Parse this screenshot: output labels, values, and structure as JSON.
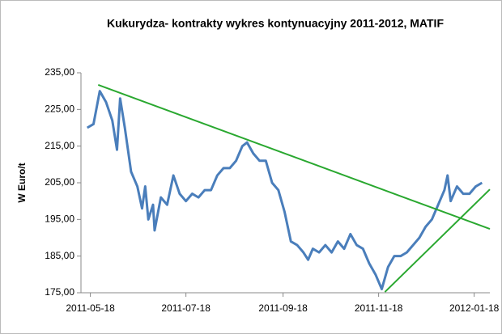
{
  "chart_data": {
    "type": "line",
    "title": "Kukurydza- kontrakty wykres kontynuacyjny 2011-2012,  MATIF",
    "y_label": "W Euro/t",
    "x": [
      "2011-05-16",
      "2011-05-20",
      "2011-05-24",
      "2011-05-28",
      "2011-06-01",
      "2011-06-04",
      "2011-06-06",
      "2011-06-09",
      "2011-06-13",
      "2011-06-17",
      "2011-06-20",
      "2011-06-22",
      "2011-06-24",
      "2011-06-27",
      "2011-06-28",
      "2011-07-02",
      "2011-07-06",
      "2011-07-10",
      "2011-07-14",
      "2011-07-18",
      "2011-07-22",
      "2011-07-26",
      "2011-07-30",
      "2011-08-03",
      "2011-08-07",
      "2011-08-11",
      "2011-08-15",
      "2011-08-19",
      "2011-08-23",
      "2011-08-26",
      "2011-08-30",
      "2011-09-03",
      "2011-09-07",
      "2011-09-11",
      "2011-09-15",
      "2011-09-19",
      "2011-09-23",
      "2011-09-27",
      "2011-10-01",
      "2011-10-04",
      "2011-10-07",
      "2011-10-11",
      "2011-10-15",
      "2011-10-19",
      "2011-10-23",
      "2011-10-27",
      "2011-10-31",
      "2011-11-04",
      "2011-11-08",
      "2011-11-12",
      "2011-11-16",
      "2011-11-20",
      "2011-11-24",
      "2011-11-28",
      "2011-12-02",
      "2011-12-06",
      "2011-12-10",
      "2011-12-14",
      "2011-12-18",
      "2011-12-22",
      "2011-12-26",
      "2011-12-30",
      "2012-01-01",
      "2012-01-03",
      "2012-01-07",
      "2012-01-11",
      "2012-01-15",
      "2012-01-19",
      "2012-01-23"
    ],
    "series": [
      {
        "color": "#4a7ebb",
        "values": [
          220,
          221,
          230,
          227,
          222,
          214,
          228,
          220,
          208,
          204,
          198,
          204,
          195,
          199,
          192,
          201,
          199,
          207,
          202,
          200,
          202,
          201,
          203,
          203,
          207,
          209,
          209,
          211,
          215,
          216,
          213,
          211,
          211,
          205,
          203,
          197,
          189,
          188,
          186,
          184,
          187,
          186,
          188,
          186,
          189,
          187,
          191,
          188,
          187,
          183,
          180,
          176,
          182,
          185,
          185,
          186,
          188,
          190,
          193,
          195,
          199,
          203,
          207,
          200,
          204,
          202,
          202,
          204,
          205
        ]
      }
    ],
    "trend_lines": [
      {
        "color": "#2aa830",
        "x": [
          "2011-05-23",
          "2012-01-28"
        ],
        "values": [
          231.7,
          192.4
        ]
      },
      {
        "color": "#2aa830",
        "x": [
          "2011-11-22",
          "2012-01-28"
        ],
        "values": [
          175.2,
          203.2
        ]
      }
    ],
    "xlim": [
      "2011-05-12",
      "2012-01-28"
    ],
    "xticks": [
      "2011-05-18",
      "2011-07-18",
      "2011-09-18",
      "2011-11-18",
      "2012-01-18"
    ],
    "ylim": [
      175,
      235
    ],
    "yticks": [
      {
        "value": 175,
        "label": "175,00"
      },
      {
        "value": 185,
        "label": "185,00"
      },
      {
        "value": 195,
        "label": "195,00"
      },
      {
        "value": 205,
        "label": "205,00"
      },
      {
        "value": 215,
        "label": "215,00"
      },
      {
        "value": 225,
        "label": "225,00"
      },
      {
        "value": 235,
        "label": "235,00"
      }
    ],
    "grid": false
  }
}
